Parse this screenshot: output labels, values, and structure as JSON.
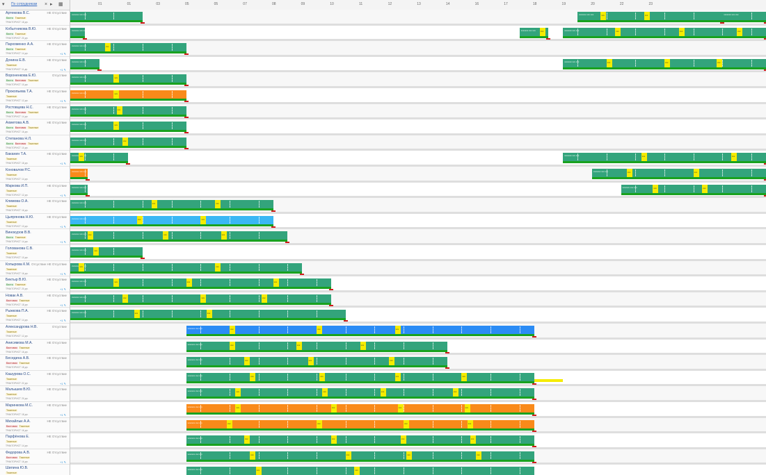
{
  "header": {
    "filter_icon": "funnel-icon",
    "search_text": "По сотрудникам",
    "close_icon": "close-icon",
    "arrow_icon": "chevron-down-icon",
    "grid_icon": "grid-icon"
  },
  "timeline": {
    "ticks": [
      "01",
      "01",
      "03",
      "05",
      "05",
      "07",
      "08",
      "09",
      "10",
      "11",
      "12",
      "13",
      "14",
      "16",
      "17",
      "18",
      "19",
      "20",
      "22",
      "23"
    ],
    "colors": {
      "green": "#33a47c",
      "strip": "#19a21f",
      "orange": "#f98a1a",
      "blue": "#2b8cf5",
      "lightblue": "#3ab7f4",
      "yellow": "#f5ec00",
      "pink": "#f29098",
      "salmon": "#f7ba9a"
    },
    "shift_label": "ххххххх ххх ххх",
    "yellow_label": "ххх"
  },
  "employees": [
    {
      "name": "Артемова В.С.",
      "status": "НЕ Отсуствие",
      "badges": [
        "Вахта",
        "Тяжелые"
      ],
      "sub": "ТРАКТОРИСТ 18 дн.",
      "copy": ""
    },
    {
      "name": "Кобытникова В.Ю.",
      "status": "НЕ Отсуствие",
      "badges": [
        "Вахта",
        "Тяжелые"
      ],
      "sub": "ТРАКТОРИСТ 20 дн.",
      "copy": ""
    },
    {
      "name": "Пархоменко А.А.",
      "status": "НЕ Отсуствие",
      "badges": [
        "Вахта",
        "Тяжелые"
      ],
      "sub": "ТРАКТОРИСТ 14 дн.",
      "copy": "+1 ✎"
    },
    {
      "name": "Донина Е.В.",
      "status": "НЕ Отсуствие",
      "badges": [
        "Тяжелые"
      ],
      "sub": "ТРАКТОРИСТ 11 дн.",
      "copy": "+1 ✎"
    },
    {
      "name": "Вороненкова Е.Ю.",
      "status": "Отсуствие",
      "badges": [
        "Вахта",
        "Вахтовая",
        "Тяжелые"
      ],
      "sub": "ТРАКТОРИСТ 10 дн.",
      "copy": ""
    },
    {
      "name": "Прокопьева Т.А.",
      "status": "НЕ Отсуствие",
      "badges": [
        "Тяжелые"
      ],
      "sub": "ТРАКТОРИСТ 12 дн.",
      "copy": "+1 ✎"
    },
    {
      "name": "Ростовцева Н.С.",
      "status": "НЕ Отсуствие",
      "badges": [
        "Вахта",
        "Вахтовая",
        "Тяжелые"
      ],
      "sub": "ТРАКТОРИСТ 14 дн.",
      "copy": ""
    },
    {
      "name": "Ахметова А.В.",
      "status": "НЕ Отсуствие",
      "badges": [
        "Вахта",
        "Вахтовая",
        "Тяжелые"
      ],
      "sub": "ТРАКТОРИСТ 16 дн.",
      "copy": ""
    },
    {
      "name": "Степанова Н.Л.",
      "status": "",
      "badges": [
        "Вахта",
        "Вахтовая",
        "Тяжелые"
      ],
      "sub": "ТРАКТОРИСТ 10 дн.",
      "copy": ""
    },
    {
      "name": "Баканин Т.А.",
      "status": "НЕ Отсуствие",
      "badges": [
        "Тяжелые"
      ],
      "sub": "ТРАКТОРИСТ 18 дн.",
      "copy": "+1 ✎"
    },
    {
      "name": "Коновалов Р.С.",
      "status": "",
      "badges": [
        "Тяжелые"
      ],
      "sub": "ТРАКТОРИСТ 14 дн.",
      "copy": ""
    },
    {
      "name": "Маркова И.П.",
      "status": "НЕ Отсуствие",
      "badges": [
        "Тяжелые"
      ],
      "sub": "ТРАКТОРИСТ 12 дн.",
      "copy": "+1 ✎"
    },
    {
      "name": "Климова О.А.",
      "status": "НЕ Отсуствие",
      "badges": [
        "Тяжелые"
      ],
      "sub": "ТРАКТОРИСТ 16 дн.",
      "copy": ""
    },
    {
      "name": "Цыпрянова Н.Ю.",
      "status": "НЕ Отсуствие",
      "badges": [
        "Тяжелые"
      ],
      "sub": "ТРАКТОРИСТ 13 дн.",
      "copy": "+1 ✎"
    },
    {
      "name": "Винокуров В.В.",
      "status": "",
      "badges": [
        "Вахта",
        "Тяжелые"
      ],
      "sub": "ТРАКТОРИСТ 14 дн.",
      "copy": "+1 ✎"
    },
    {
      "name": "Голованова С.В.",
      "status": "",
      "badges": [
        "Тяжелые"
      ],
      "sub": "ТРАКТОРИСТ 10 дн.",
      "copy": ""
    },
    {
      "name": "Копырова К.М.",
      "status": "Отсуствие НЕ Отсуствие",
      "badges": [
        "Тяжелые"
      ],
      "sub": "ТРАКТОРИСТ 16 дн.",
      "copy": "+1 ✎"
    },
    {
      "name": "Бектыр В.Ю.",
      "status": "НЕ Отсуствие",
      "badges": [
        "Вахта",
        "Тяжелые"
      ],
      "sub": "ТРАКТОРИСТ 20 дн.",
      "copy": "+1 ✎"
    },
    {
      "name": "Новак А.В.",
      "status": "НЕ Отсуствие",
      "badges": [
        "Вахтовая",
        "Тяжелые"
      ],
      "sub": "ТРАКТОРИСТ 18 дн.",
      "copy": "+1 ✎"
    },
    {
      "name": "Рыжкова П.А.",
      "status": "НЕ Отсуствие",
      "badges": [
        "Тяжелые"
      ],
      "sub": "ТРАКТОРИСТ 14 дн.",
      "copy": "+1 ✎"
    },
    {
      "name": "Александрова Н.В.",
      "status": "Отсуствие",
      "badges": [
        "Тяжелые"
      ],
      "sub": "ТРАКТОРИСТ 12 дн.",
      "copy": ""
    },
    {
      "name": "Анисимова М.А.",
      "status": "НЕ Отсуствие",
      "badges": [
        "Вахтовая",
        "Тяжелые"
      ],
      "sub": "ТРАКТОРИСТ 16 дн.",
      "copy": ""
    },
    {
      "name": "Беседина А.В.",
      "status": "НЕ Отсуствие",
      "badges": [
        "Вахтовая",
        "Тяжелые"
      ],
      "sub": "ТРАКТОРИСТ 18 дн.",
      "copy": ""
    },
    {
      "name": "Кашурова О.С.",
      "status": "НЕ Отсуствие",
      "badges": [
        "Тяжелые"
      ],
      "sub": "ТРАКТОРИСТ 22 дн.",
      "copy": "+1 ✎"
    },
    {
      "name": "Малышев В.Ю.",
      "status": "НЕ Отсуствие",
      "badges": [
        "Тяжелые"
      ],
      "sub": "ТРАКТОРИСТ 20 дн.",
      "copy": ""
    },
    {
      "name": "Маринкова М.С.",
      "status": "НЕ Отсуствие",
      "badges": [
        "Тяжелые"
      ],
      "sub": "ТРАКТОРИСТ 18 дн.",
      "copy": "+1 ✎"
    },
    {
      "name": "Михайлык А.А.",
      "status": "НЕ Отсуствие",
      "badges": [
        "Вахтовая",
        "Тяжелые"
      ],
      "sub": "ТРАКТОРИСТ 16 дн.",
      "copy": ""
    },
    {
      "name": "Парфёнова Е.",
      "status": "НЕ Отсуствие",
      "badges": [
        "Тяжелые"
      ],
      "sub": "ТРАКТОРИСТ 14 дн.",
      "copy": ""
    },
    {
      "name": "Федорова А.В.",
      "status": "НЕ Отсуствие",
      "badges": [
        "Вахтовая",
        "Тяжелые"
      ],
      "sub": "ТРАКТОРИСТ 16 дн.",
      "copy": "+1 ✎"
    },
    {
      "name": "Шилина Ю.В.",
      "status": "",
      "badges": [
        "Тяжелые"
      ],
      "sub": "ТРАКТОРИСТ 14 дн.",
      "copy": ""
    }
  ],
  "bars": [
    {
      "row": 0,
      "s": 0,
      "e": 2.5,
      "c": "green",
      "y": []
    },
    {
      "row": 0,
      "s": 17.5,
      "e": 22.5,
      "c": "green",
      "y": [
        18.3,
        19.8
      ]
    },
    {
      "row": 0,
      "s": 22.5,
      "e": 24,
      "c": "green",
      "y": []
    },
    {
      "row": 1,
      "s": 0,
      "e": 0.5,
      "c": "green",
      "y": []
    },
    {
      "row": 1,
      "s": 15.5,
      "e": 16.5,
      "c": "green",
      "y": [
        16.2
      ]
    },
    {
      "row": 1,
      "s": 17,
      "e": 24,
      "c": "green",
      "y": [
        18.8,
        21,
        23
      ]
    },
    {
      "row": 2,
      "s": 0,
      "e": 4,
      "c": "green",
      "y": [
        1.2
      ]
    },
    {
      "row": 3,
      "s": 0,
      "e": 1,
      "c": "green",
      "y": []
    },
    {
      "row": 3,
      "s": 17,
      "e": 24,
      "c": "green",
      "y": [
        18.5,
        20.5,
        22.3
      ]
    },
    {
      "row": 4,
      "s": 0,
      "e": 4,
      "c": "green",
      "y": [
        1.5
      ]
    },
    {
      "row": 5,
      "s": 0,
      "e": 4,
      "c": "orange",
      "y": [
        1.5
      ]
    },
    {
      "row": 6,
      "s": 0,
      "e": 4,
      "c": "green",
      "y": [
        1.6
      ]
    },
    {
      "row": 7,
      "s": 0,
      "e": 4,
      "c": "green",
      "y": [
        1.5
      ]
    },
    {
      "row": 8,
      "s": 0,
      "e": 4,
      "c": "green",
      "y": [
        1.8
      ]
    },
    {
      "row": 9,
      "s": 0,
      "e": 2,
      "c": "green",
      "y": [
        0.3
      ]
    },
    {
      "row": 9,
      "s": 17,
      "e": 24,
      "c": "green",
      "y": [
        19.7,
        22.8
      ]
    },
    {
      "row": 10,
      "s": 0,
      "e": 0.6,
      "c": "orange",
      "y": []
    },
    {
      "row": 10,
      "s": 18,
      "e": 24,
      "c": "green",
      "y": [
        19.2,
        21.5
      ]
    },
    {
      "row": 11,
      "s": 0,
      "e": 0.6,
      "c": "green",
      "y": []
    },
    {
      "row": 11,
      "s": 19,
      "e": 24,
      "c": "green",
      "y": [
        20.1,
        21.8
      ]
    },
    {
      "row": 12,
      "s": 0,
      "e": 7,
      "c": "green",
      "y": [
        2.8,
        5
      ]
    },
    {
      "row": 13,
      "s": 0,
      "e": 7,
      "c": "lightblue",
      "y": [
        2.3,
        4.5
      ]
    },
    {
      "row": 14,
      "s": 0,
      "e": 7.5,
      "c": "green",
      "y": [
        0.6,
        3.2,
        5.2
      ]
    },
    {
      "row": 15,
      "s": 0,
      "e": 2.5,
      "c": "green",
      "y": [
        0.8
      ]
    },
    {
      "row": 16,
      "s": 0,
      "e": 8,
      "c": "green",
      "y": [
        0.3,
        5
      ]
    },
    {
      "row": 17,
      "s": 0,
      "e": 9,
      "c": "green",
      "y": [
        1.5,
        4,
        7
      ]
    },
    {
      "row": 18,
      "s": 0,
      "e": 9,
      "c": "green",
      "y": [
        1.8,
        4.5,
        6.6
      ]
    },
    {
      "row": 19,
      "s": 0,
      "e": 9.5,
      "c": "green",
      "y": [
        2.2,
        4.7
      ]
    },
    {
      "row": 20,
      "s": 4,
      "e": 16,
      "c": "blue",
      "y": [
        5.5,
        8.5,
        11.2
      ]
    },
    {
      "row": 21,
      "s": 4,
      "e": 13,
      "c": "green",
      "y": [
        5.5,
        7.8,
        10
      ]
    },
    {
      "row": 22,
      "s": 4,
      "e": 13,
      "c": "green",
      "y": [
        6,
        8.2,
        11
      ]
    },
    {
      "row": 23,
      "s": 4,
      "e": 16,
      "c": "green",
      "y": [
        6.2,
        8.6,
        11.2,
        13.5
      ]
    },
    {
      "row": 23,
      "s": 16,
      "e": 17,
      "c": "yellowbar",
      "y": []
    },
    {
      "row": 24,
      "s": 4,
      "e": 16,
      "c": "green",
      "y": [
        5.7,
        8.7,
        10.7,
        13.2
      ]
    },
    {
      "row": 25,
      "s": 4,
      "e": 16,
      "c": "orange",
      "y": [
        5.7,
        9,
        11.3,
        13.6
      ]
    },
    {
      "row": 26,
      "s": 4,
      "e": 16,
      "c": "orange",
      "y": [
        5.4,
        8.5,
        11.5,
        13.7
      ]
    },
    {
      "row": 27,
      "s": 4,
      "e": 16,
      "c": "green",
      "y": [
        6,
        9,
        11.4,
        13.8
      ]
    },
    {
      "row": 28,
      "s": 4,
      "e": 16,
      "c": "green",
      "y": [
        6.2,
        9.5,
        11.6,
        14
      ]
    },
    {
      "row": 29,
      "s": 4,
      "e": 16,
      "c": "green",
      "y": [
        6.4,
        9.8
      ]
    }
  ]
}
